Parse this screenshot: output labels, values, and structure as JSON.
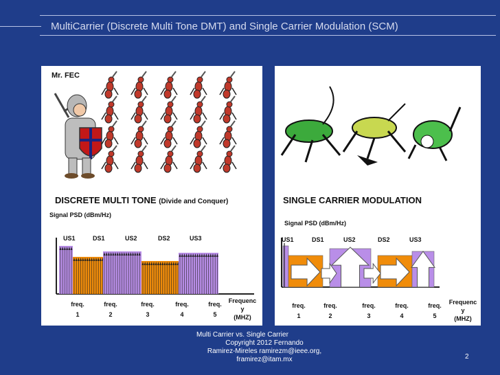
{
  "title": "MultiCarrier (Discrete Multi Tone DMT)  and Single Carrier Modulation (SCM)",
  "left": {
    "label": "Mr. FEC",
    "heading": "DISCRETE MULTI TONE",
    "heading_note": "(Divide and Conquer)",
    "ylabel": "Signal PSD (dBm/Hz)",
    "bands": [
      "US1",
      "DS1",
      "US2",
      "DS2",
      "US3"
    ],
    "freqs": [
      [
        "freq.",
        "1"
      ],
      [
        "freq.",
        "2"
      ],
      [
        "freq.",
        "3"
      ],
      [
        "freq.",
        "4"
      ],
      [
        "freq.",
        "5"
      ]
    ],
    "xlabel": [
      "Frequenc",
      "y",
      "(MHZ)"
    ]
  },
  "right": {
    "heading": "SINGLE CARRIER MODULATION",
    "ylabel": "Signal PSD (dBm/Hz)",
    "bands": [
      "US1",
      "DS1",
      "US2",
      "DS2",
      "US3"
    ],
    "freqs": [
      [
        "freq.",
        "1"
      ],
      [
        "freq.",
        "2"
      ],
      [
        "freq.",
        "3"
      ],
      [
        "freq.",
        "4"
      ],
      [
        "freq.",
        "5"
      ]
    ],
    "xlabel": [
      "Frequenc",
      "y",
      "(MHZ)"
    ]
  },
  "colors": {
    "upstream": "#b98ee8",
    "downstream": "#f08c0a",
    "background": "#1f3d8a"
  },
  "footer": [
    "Multi Carrier vs. Single Carrier",
    "Copyright 2012 Fernando",
    "Ramirez-Mireles  ramirezm@ieee.org,",
    "framirez@itam.mx"
  ],
  "page": "2"
}
